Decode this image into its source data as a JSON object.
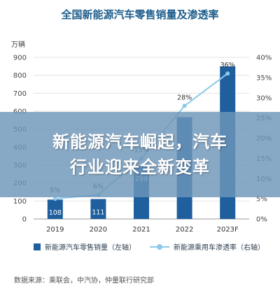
{
  "title": "全国新能源汽车零售销量及渗透率",
  "banner": {
    "line1": "新能源汽车崛起，汽车",
    "line2": "行业迎来全新变革"
  },
  "source": "数据来源：乘联会，中汽协，仲量联行研究部",
  "colors": {
    "bar": "#1f5f9e",
    "line": "#8cc9e8",
    "title": "#1d5d8c"
  },
  "chart_data": {
    "type": "bar+line",
    "title": "全国新能源汽车零售销量及渗透率",
    "categories": [
      "2019",
      "2020",
      "2021",
      "2022",
      "2023F"
    ],
    "left_axis_unit": "万辆",
    "left_ylim": [
      0,
      900
    ],
    "left_ticks": [
      "0",
      "100",
      "200",
      "300",
      "400",
      "500",
      "600",
      "700",
      "800",
      "900"
    ],
    "right_ylim": [
      0,
      40
    ],
    "right_ticks": [
      "0%",
      "5%",
      "10%",
      "15%",
      "20%",
      "25%",
      "30%",
      "35%",
      "40%"
    ],
    "grid": true,
    "legend_position": "bottom",
    "series": [
      {
        "name": "新能源汽车零售销量（左轴）",
        "type": "bar",
        "axis": "left",
        "values": [
          108,
          111,
          299,
          567,
          850
        ],
        "labels": [
          "108",
          "111",
          "299",
          "",
          ""
        ]
      },
      {
        "name": "新能源乘用车渗透率（右轴）",
        "type": "line",
        "axis": "right",
        "values": [
          5,
          6,
          15,
          28,
          36
        ],
        "labels": [
          "5%",
          "6%",
          "15%",
          "28%",
          "36%"
        ]
      }
    ]
  }
}
